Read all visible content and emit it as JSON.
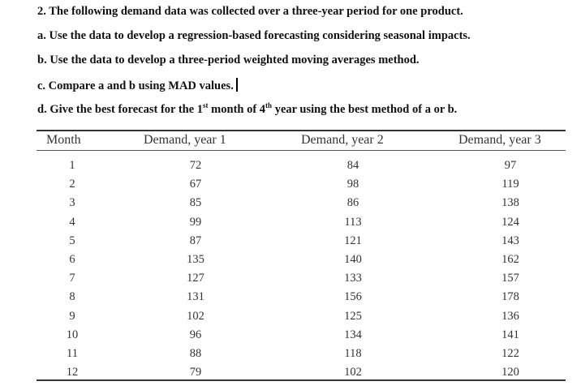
{
  "questions": {
    "title": "2.  The following demand data was collected over a three-year period for one product.",
    "a": "a. Use the data to develop a regression-based forecasting considering seasonal impacts.",
    "b": "b. Use the data to develop a three-period weighted moving averages method.",
    "c": "c. Compare a and b using MAD values.",
    "d_prefix": "d. Give the best forecast for the 1",
    "d_sup1": "st",
    "d_mid": " month of 4",
    "d_sup2": "th",
    "d_suffix": " year using the best method of a or b."
  },
  "table": {
    "headers": [
      "Month",
      "Demand, year 1",
      "Demand, year 2",
      "Demand, year 3"
    ],
    "rows": [
      [
        "1",
        "72",
        "84",
        "97"
      ],
      [
        "2",
        "67",
        "98",
        "119"
      ],
      [
        "3",
        "85",
        "86",
        "138"
      ],
      [
        "4",
        "99",
        "113",
        "124"
      ],
      [
        "5",
        "87",
        "121",
        "143"
      ],
      [
        "6",
        "135",
        "140",
        "162"
      ],
      [
        "7",
        "127",
        "133",
        "157"
      ],
      [
        "8",
        "131",
        "156",
        "178"
      ],
      [
        "9",
        "102",
        "125",
        "136"
      ],
      [
        "10",
        "96",
        "134",
        "141"
      ],
      [
        "11",
        "88",
        "118",
        "122"
      ],
      [
        "12",
        "79",
        "102",
        "120"
      ]
    ]
  }
}
